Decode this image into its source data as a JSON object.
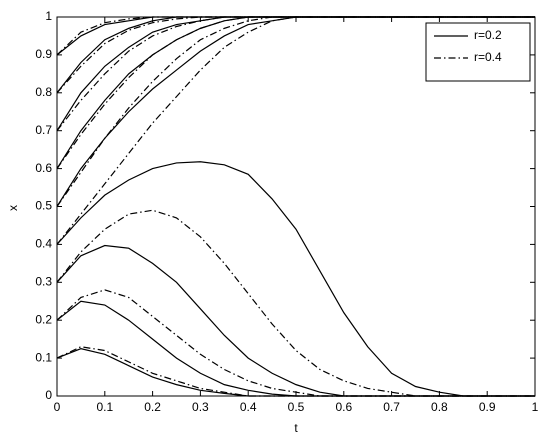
{
  "chart_data": {
    "type": "line",
    "xlabel": "t",
    "ylabel": "x",
    "x": [
      0,
      0.05,
      0.1,
      0.15,
      0.2,
      0.25,
      0.3,
      0.35,
      0.4,
      0.45,
      0.5,
      0.55,
      0.6,
      0.65,
      0.7,
      0.75,
      0.8,
      0.85,
      0.9,
      0.95,
      1
    ],
    "xlim": [
      0,
      1
    ],
    "ylim": [
      0,
      1
    ],
    "xticks": [
      0,
      0.1,
      0.2,
      0.3,
      0.4,
      0.5,
      0.6,
      0.7,
      0.8,
      0.9,
      1
    ],
    "yticks": [
      0,
      0.1,
      0.2,
      0.3,
      0.4,
      0.5,
      0.6,
      0.7,
      0.8,
      0.9,
      1
    ],
    "legend": "upper right",
    "series": [
      {
        "name": "r=0.2",
        "color": "#000000",
        "dash": "solid",
        "curves": [
          [
            0.9,
            0.95,
            0.98,
            0.99,
            1,
            1,
            1,
            1,
            1,
            1,
            1,
            1,
            1,
            1,
            1,
            1,
            1,
            1,
            1,
            1,
            1
          ],
          [
            0.8,
            0.88,
            0.94,
            0.97,
            0.99,
            1,
            1,
            1,
            1,
            1,
            1,
            1,
            1,
            1,
            1,
            1,
            1,
            1,
            1,
            1,
            1
          ],
          [
            0.7,
            0.8,
            0.87,
            0.92,
            0.96,
            0.98,
            0.99,
            1,
            1,
            1,
            1,
            1,
            1,
            1,
            1,
            1,
            1,
            1,
            1,
            1,
            1
          ],
          [
            0.6,
            0.7,
            0.78,
            0.85,
            0.9,
            0.94,
            0.97,
            0.99,
            1,
            1,
            1,
            1,
            1,
            1,
            1,
            1,
            1,
            1,
            1,
            1,
            1
          ],
          [
            0.5,
            0.6,
            0.68,
            0.75,
            0.81,
            0.86,
            0.91,
            0.95,
            0.98,
            0.99,
            1,
            1,
            1,
            1,
            1,
            1,
            1,
            1,
            1,
            1,
            1
          ],
          [
            0.4,
            0.47,
            0.53,
            0.57,
            0.6,
            0.615,
            0.618,
            0.61,
            0.585,
            0.52,
            0.44,
            0.33,
            0.22,
            0.13,
            0.06,
            0.025,
            0.01,
            0,
            0,
            0,
            0
          ],
          [
            0.3,
            0.37,
            0.397,
            0.39,
            0.35,
            0.3,
            0.23,
            0.16,
            0.1,
            0.06,
            0.03,
            0.01,
            0,
            0,
            0,
            0,
            0,
            0,
            0,
            0,
            0
          ],
          [
            0.2,
            0.25,
            0.24,
            0.2,
            0.15,
            0.1,
            0.06,
            0.03,
            0.015,
            0.005,
            0,
            0,
            0,
            0,
            0,
            0,
            0,
            0,
            0,
            0,
            0
          ],
          [
            0.1,
            0.125,
            0.11,
            0.08,
            0.05,
            0.03,
            0.015,
            0.007,
            0,
            0,
            0,
            0,
            0,
            0,
            0,
            0,
            0,
            0,
            0,
            0,
            0
          ]
        ]
      },
      {
        "name": "r=0.4",
        "color": "#000000",
        "dash": "dashdot",
        "curves": [
          [
            0.9,
            0.96,
            0.985,
            0.995,
            1,
            1,
            1,
            1,
            1,
            1,
            1,
            1,
            1,
            1,
            1,
            1,
            1,
            1,
            1,
            1,
            1
          ],
          [
            0.8,
            0.87,
            0.93,
            0.965,
            0.985,
            0.995,
            1,
            1,
            1,
            1,
            1,
            1,
            1,
            1,
            1,
            1,
            1,
            1,
            1,
            1,
            1
          ],
          [
            0.7,
            0.78,
            0.85,
            0.91,
            0.95,
            0.975,
            0.99,
            1,
            1,
            1,
            1,
            1,
            1,
            1,
            1,
            1,
            1,
            1,
            1,
            1,
            1
          ],
          [
            0.6,
            0.69,
            0.77,
            0.84,
            0.9,
            0.94,
            0.97,
            0.99,
            1,
            1,
            1,
            1,
            1,
            1,
            1,
            1,
            1,
            1,
            1,
            1,
            1
          ],
          [
            0.5,
            0.59,
            0.68,
            0.76,
            0.83,
            0.89,
            0.94,
            0.97,
            0.99,
            1,
            1,
            1,
            1,
            1,
            1,
            1,
            1,
            1,
            1,
            1,
            1
          ],
          [
            0.4,
            0.48,
            0.56,
            0.64,
            0.72,
            0.79,
            0.86,
            0.92,
            0.96,
            0.99,
            1,
            1,
            1,
            1,
            1,
            1,
            1,
            1,
            1,
            1,
            1
          ],
          [
            0.3,
            0.38,
            0.44,
            0.48,
            0.49,
            0.47,
            0.42,
            0.35,
            0.27,
            0.19,
            0.12,
            0.07,
            0.04,
            0.02,
            0.01,
            0,
            0,
            0,
            0,
            0,
            0
          ],
          [
            0.2,
            0.26,
            0.28,
            0.26,
            0.21,
            0.16,
            0.11,
            0.07,
            0.04,
            0.02,
            0.01,
            0,
            0,
            0,
            0,
            0,
            0,
            0,
            0,
            0,
            0
          ],
          [
            0.1,
            0.13,
            0.12,
            0.09,
            0.06,
            0.04,
            0.02,
            0.01,
            0,
            0,
            0,
            0,
            0,
            0,
            0,
            0,
            0,
            0,
            0,
            0,
            0
          ]
        ]
      }
    ]
  }
}
